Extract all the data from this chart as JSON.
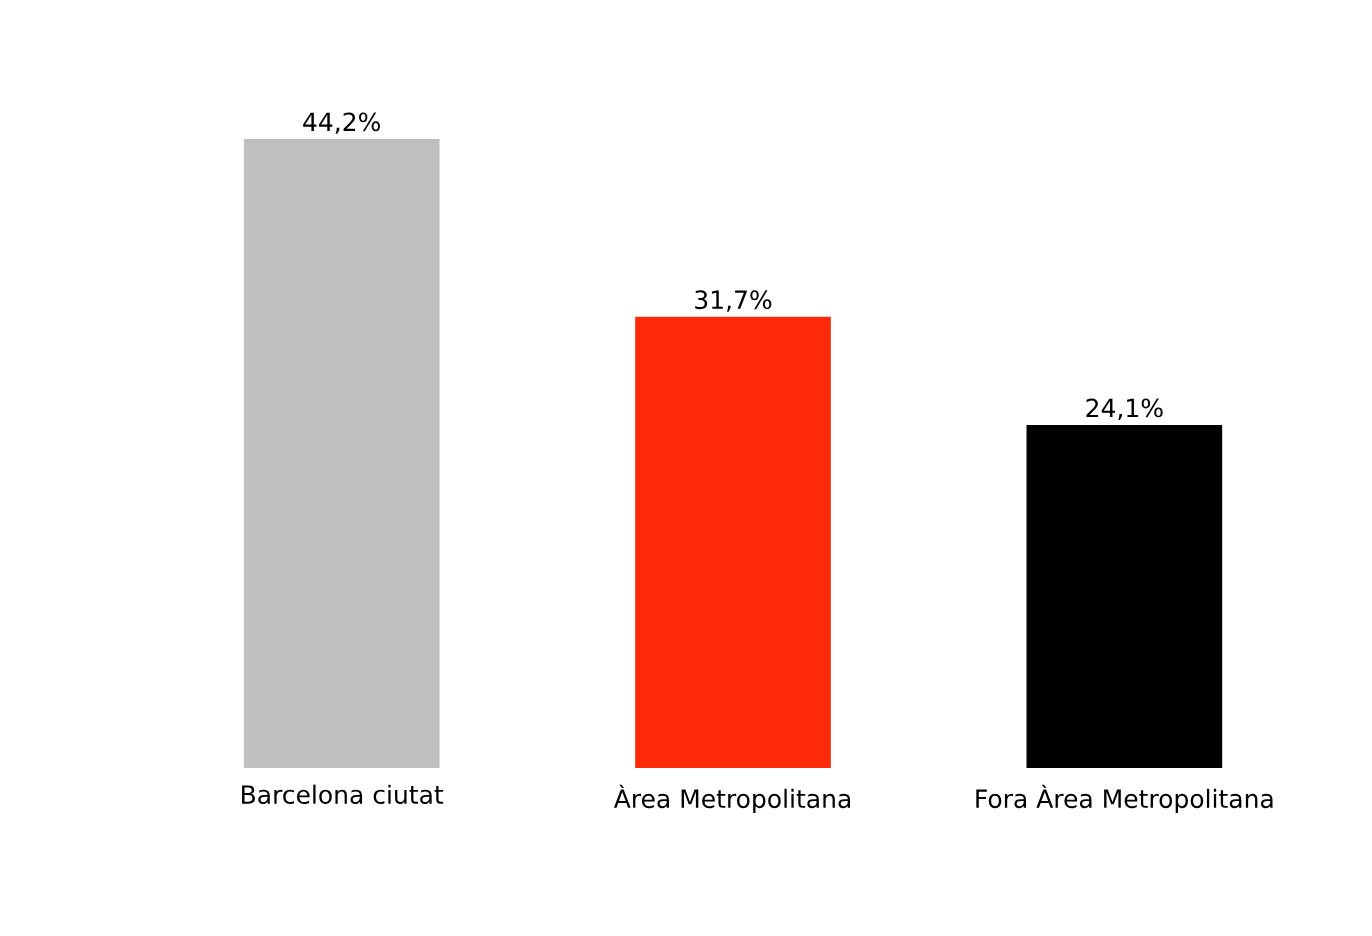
{
  "chart_data": {
    "type": "bar",
    "categories": [
      "Barcelona ciutat",
      "Àrea Metropolitana",
      "Fora Àrea Metropolitana"
    ],
    "values": [
      44.2,
      31.7,
      24.1
    ],
    "value_labels": [
      "44,2%",
      "31,7%",
      "24,1%"
    ],
    "colors": [
      "#bfbfbf",
      "#ff2a0a",
      "#000000"
    ],
    "grid": false,
    "legend": false
  }
}
